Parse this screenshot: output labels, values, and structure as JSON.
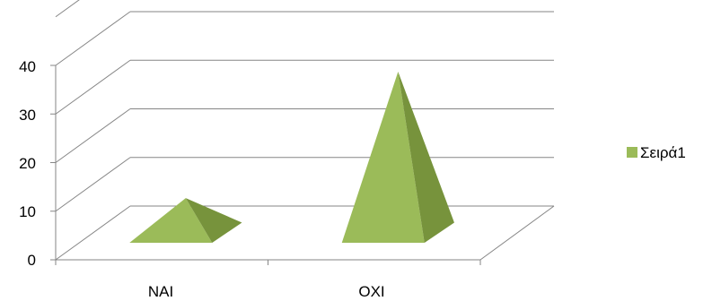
{
  "chart_data": {
    "type": "bar",
    "style": "3d-pyramid",
    "categories": [
      "ΝΑΙ",
      "ΟΧΙ"
    ],
    "series": [
      {
        "name": "Σειρά1",
        "values": [
          8,
          34
        ],
        "color": "#9bbb59",
        "shade_color": "#77933c"
      }
    ],
    "y_ticks": [
      "0",
      "10",
      "20",
      "30",
      "40"
    ],
    "ylim": [
      0,
      40
    ],
    "grid": true,
    "legend_position": "right"
  }
}
